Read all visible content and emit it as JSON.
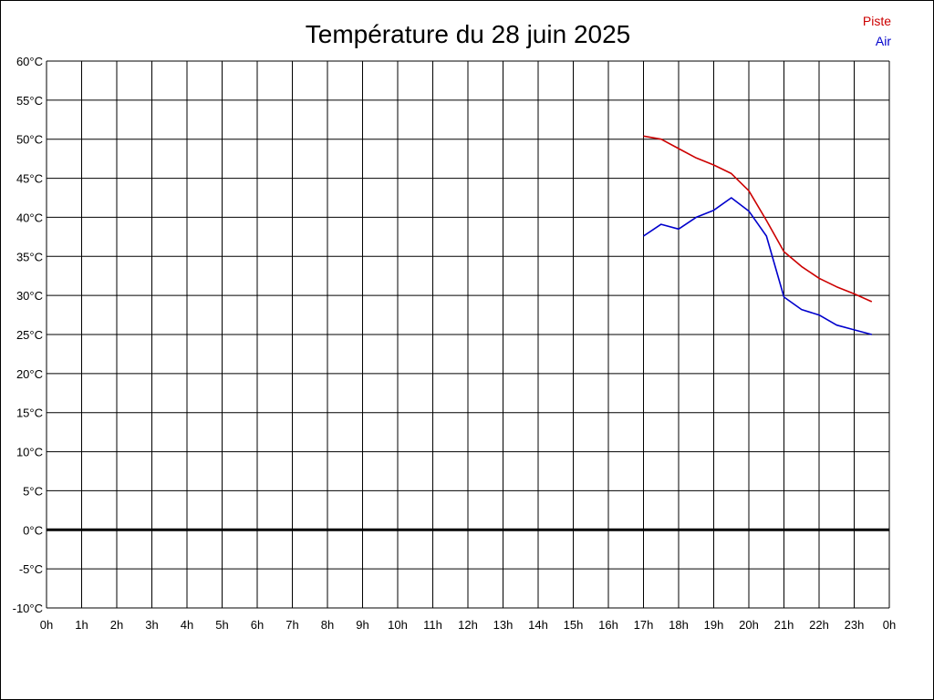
{
  "chart_data": {
    "type": "line",
    "title": "Température du 28 juin 2025",
    "xlabel": "",
    "ylabel": "",
    "x_tick_labels": [
      "0h",
      "1h",
      "2h",
      "3h",
      "4h",
      "5h",
      "6h",
      "7h",
      "8h",
      "9h",
      "10h",
      "11h",
      "12h",
      "13h",
      "14h",
      "15h",
      "16h",
      "17h",
      "18h",
      "19h",
      "20h",
      "21h",
      "22h",
      "23h",
      "0h"
    ],
    "y_tick_labels": [
      "60°C",
      "55°C",
      "50°C",
      "45°C",
      "40°C",
      "35°C",
      "30°C",
      "25°C",
      "20°C",
      "15°C",
      "10°C",
      "5°C",
      "0°C",
      "-5°C",
      "-10°C"
    ],
    "xlim": [
      0,
      24
    ],
    "ylim": [
      -10,
      60
    ],
    "grid": true,
    "legend_position": "top-right",
    "series": [
      {
        "name": "Piste",
        "color": "#cc0000",
        "x": [
          17.0,
          17.5,
          18.0,
          18.5,
          19.0,
          19.5,
          20.0,
          20.5,
          21.0,
          21.5,
          22.0,
          22.5,
          23.0,
          23.5
        ],
        "y": [
          50.4,
          50.0,
          48.8,
          47.6,
          46.7,
          45.6,
          43.4,
          39.6,
          35.6,
          33.7,
          32.2,
          31.1,
          30.2,
          29.2
        ]
      },
      {
        "name": "Air",
        "color": "#0000cc",
        "x": [
          17.0,
          17.5,
          18.0,
          18.5,
          19.0,
          19.5,
          20.0,
          20.5,
          21.0,
          21.5,
          22.0,
          22.5,
          23.0,
          23.5
        ],
        "y": [
          37.6,
          39.1,
          38.5,
          40.0,
          40.9,
          42.5,
          40.8,
          37.6,
          29.8,
          28.2,
          27.5,
          26.2,
          25.6,
          25.0
        ]
      }
    ]
  }
}
